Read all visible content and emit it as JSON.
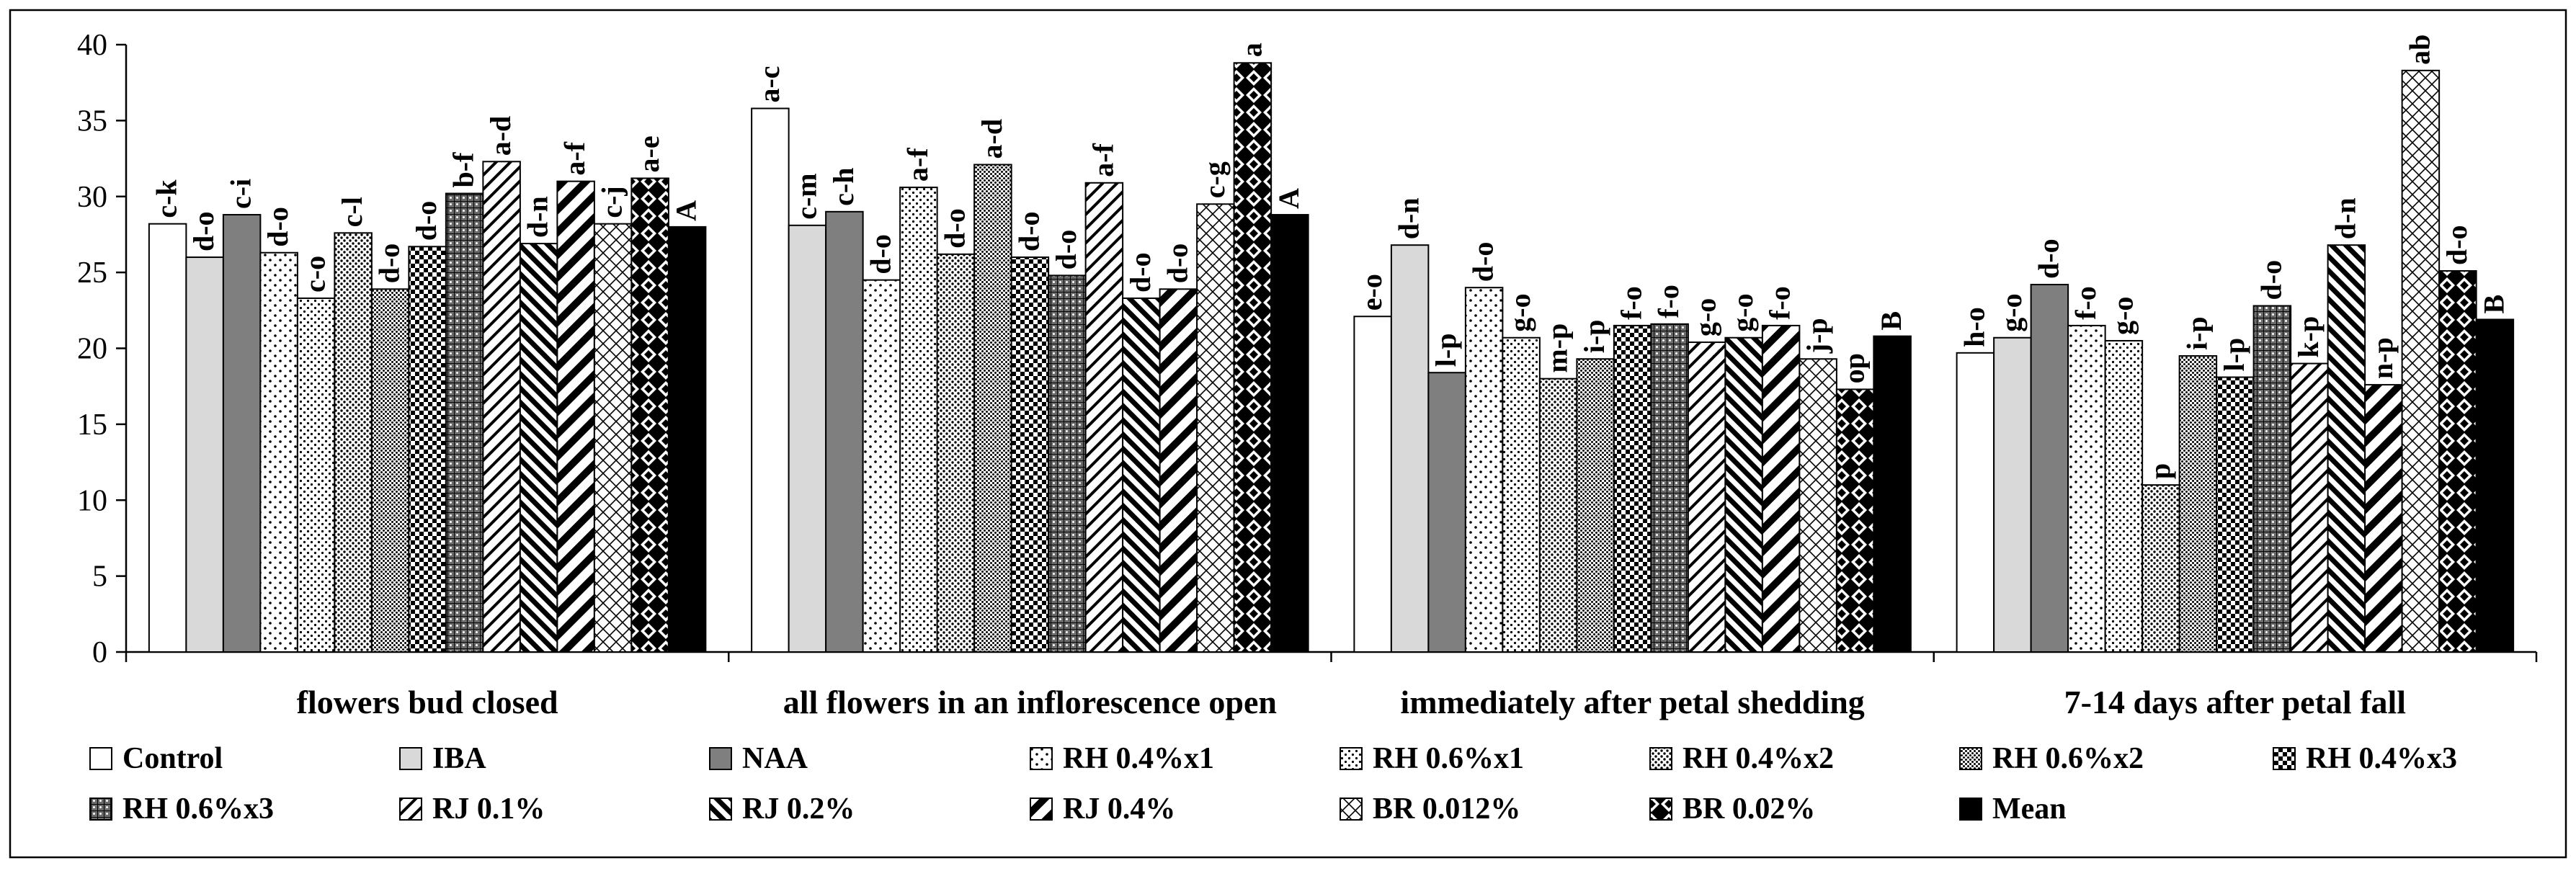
{
  "chart_data": {
    "type": "bar",
    "title": "",
    "xlabel": "",
    "ylabel": "",
    "ylim": [
      0,
      40
    ],
    "yticks": [
      "0",
      "5",
      "10",
      "15",
      "20",
      "25",
      "30",
      "35",
      "40"
    ],
    "grid": false,
    "legend_position": "bottom",
    "categories": [
      "flowers bud closed",
      "all flowers in an inflorescence open",
      "immediately after petal shedding",
      "7-14 days after petal fall"
    ],
    "series": [
      {
        "name": "Control",
        "pattern": "white",
        "values": [
          28.2,
          35.8,
          22.1,
          19.7
        ],
        "labels": [
          "c-k",
          "a-c",
          "e-o",
          "h-o"
        ]
      },
      {
        "name": "IBA",
        "pattern": "lightgray",
        "values": [
          26.0,
          28.1,
          26.8,
          20.7
        ],
        "labels": [
          "d-o",
          "c-m",
          "d-n",
          "g-o"
        ]
      },
      {
        "name": "NAA",
        "pattern": "darkgray",
        "values": [
          28.8,
          29.0,
          18.4,
          24.2
        ],
        "labels": [
          "c-i",
          "c-h",
          "l-p",
          "d-o"
        ]
      },
      {
        "name": "RH 0.4%x1",
        "pattern": "dots1",
        "values": [
          26.3,
          24.5,
          24.0,
          21.5
        ],
        "labels": [
          "d-o",
          "d-o",
          "d-o",
          "f-o"
        ]
      },
      {
        "name": "RH 0.6%x1",
        "pattern": "dots2",
        "values": [
          23.3,
          30.6,
          20.7,
          20.5
        ],
        "labels": [
          "c-o",
          "a-f",
          "g-o",
          "g-o"
        ]
      },
      {
        "name": "RH 0.4%x2",
        "pattern": "dots3",
        "values": [
          27.6,
          26.2,
          18.0,
          11.0
        ],
        "labels": [
          "c-l",
          "d-o",
          "m-p",
          "p"
        ]
      },
      {
        "name": "RH 0.6%x2",
        "pattern": "dots4",
        "values": [
          23.9,
          32.1,
          19.3,
          19.5
        ],
        "labels": [
          "d-o",
          "a-d",
          "i-p",
          "i-p"
        ]
      },
      {
        "name": "RH 0.4%x3",
        "pattern": "check",
        "values": [
          26.7,
          26.0,
          21.5,
          18.1
        ],
        "labels": [
          "d-o",
          "d-o",
          "f-o",
          "l-p"
        ]
      },
      {
        "name": "RH 0.6%x3",
        "pattern": "grid",
        "values": [
          30.2,
          24.8,
          21.6,
          22.8
        ],
        "labels": [
          "b-f",
          "d-o",
          "f-o",
          "d-o"
        ]
      },
      {
        "name": "RJ 0.1%",
        "pattern": "fdiag",
        "values": [
          32.3,
          30.9,
          20.4,
          19.0
        ],
        "labels": [
          "a-d",
          "a-f",
          "g-o",
          "k-p"
        ]
      },
      {
        "name": "RJ 0.2%",
        "pattern": "bdiag",
        "values": [
          26.9,
          23.3,
          20.7,
          26.8
        ],
        "labels": [
          "d-n",
          "d-o",
          "g-o",
          "d-n"
        ]
      },
      {
        "name": "RJ 0.4%",
        "pattern": "wdiag",
        "values": [
          31.0,
          23.9,
          21.5,
          17.6
        ],
        "labels": [
          "a-f",
          "d-o",
          "f-o",
          "n-p"
        ]
      },
      {
        "name": "BR 0.012%",
        "pattern": "lattice",
        "values": [
          28.2,
          29.5,
          19.3,
          38.3
        ],
        "labels": [
          "c-j",
          "c-g",
          "j-p",
          "ab"
        ]
      },
      {
        "name": "BR 0.02%",
        "pattern": "harlequin",
        "values": [
          31.2,
          38.8,
          17.3,
          25.1
        ],
        "labels": [
          "a-e",
          "a",
          "op",
          "d-o"
        ]
      },
      {
        "name": "Mean",
        "pattern": "black",
        "values": [
          28.0,
          28.8,
          20.8,
          21.9
        ],
        "labels": [
          "A",
          "A",
          "B",
          "B"
        ]
      }
    ]
  }
}
